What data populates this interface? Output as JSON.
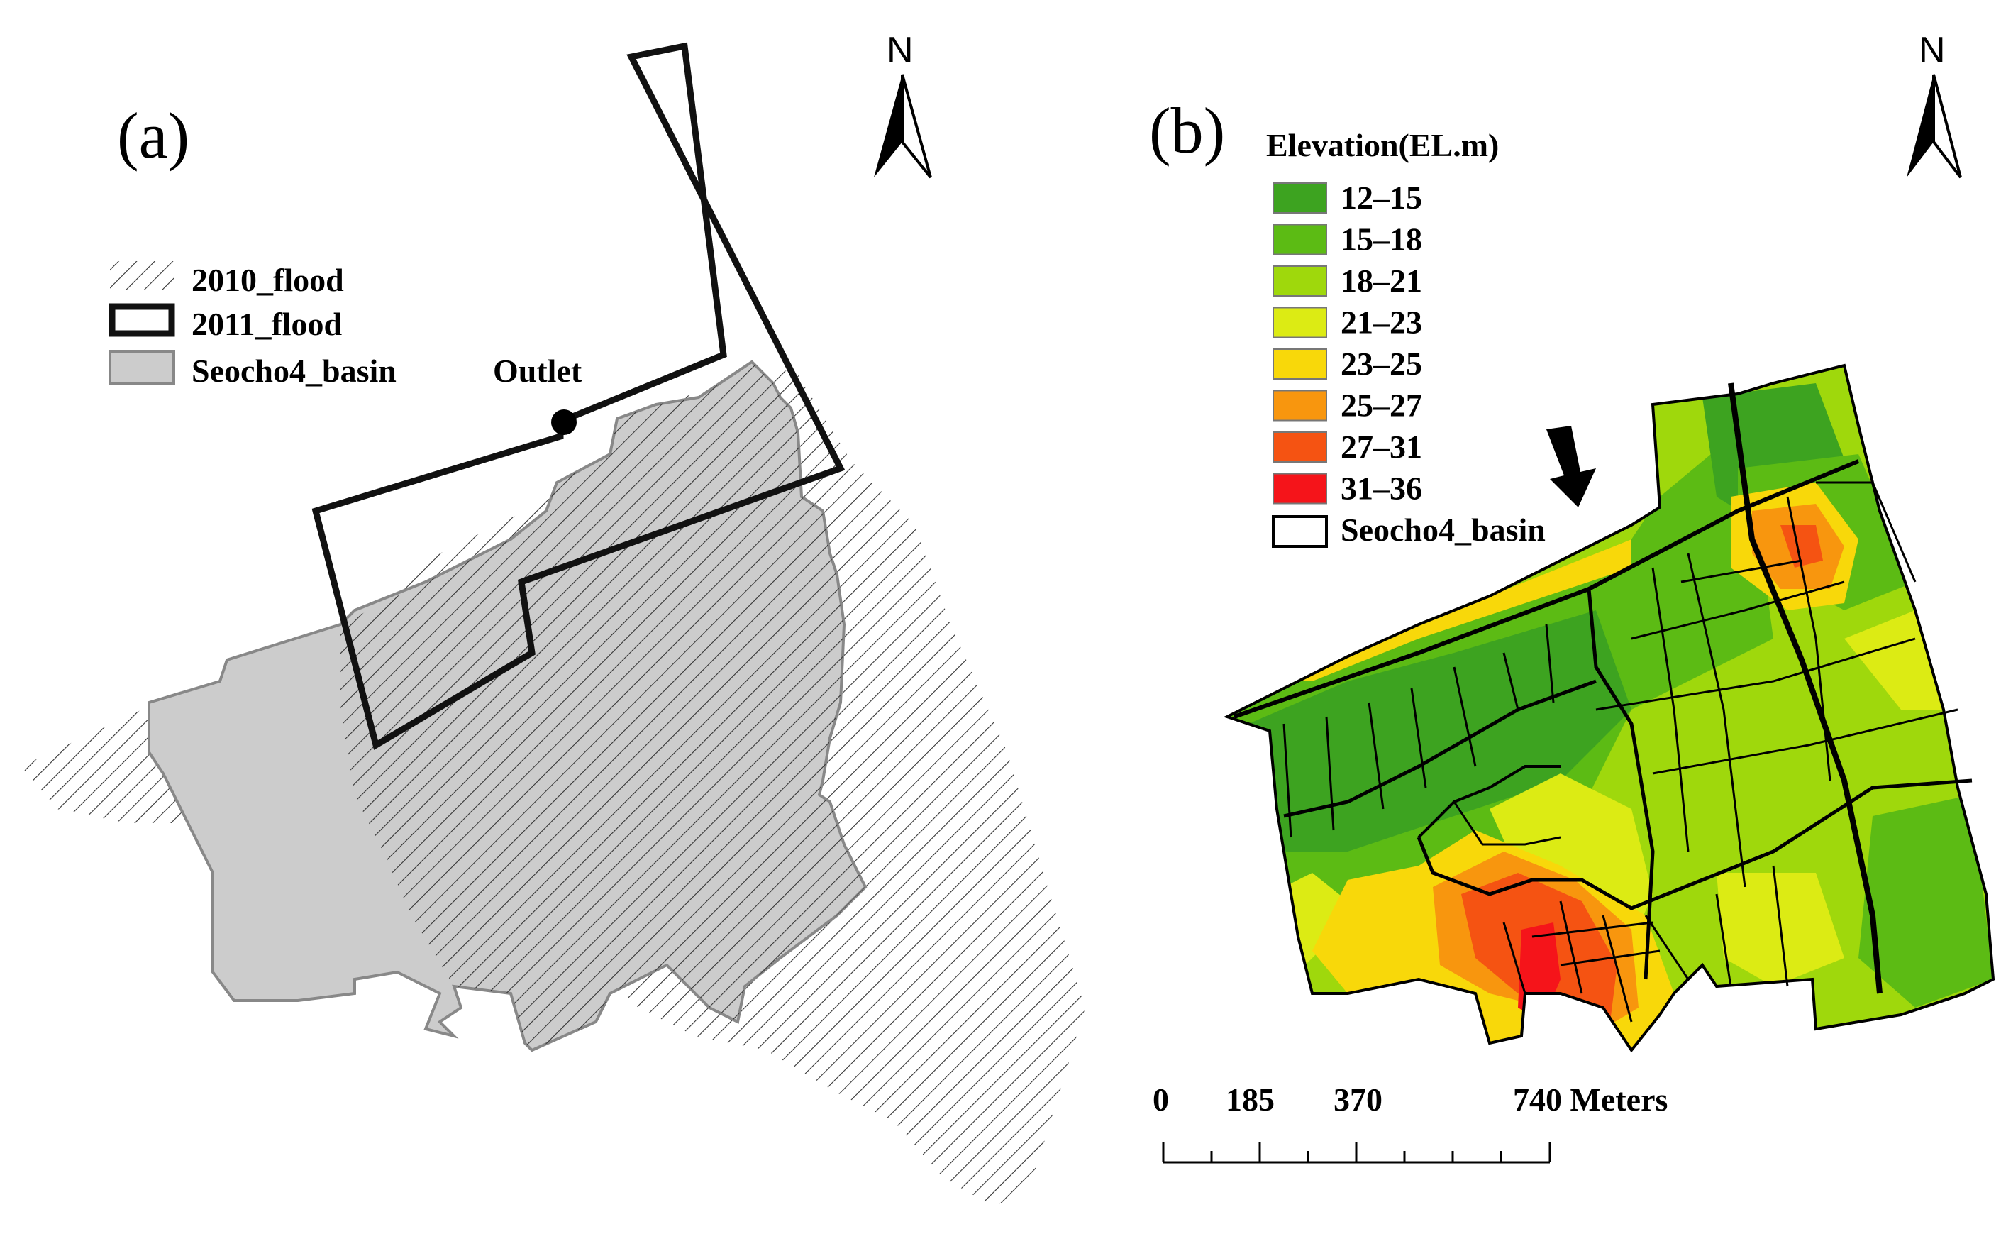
{
  "panel_a": {
    "label": "(a)",
    "north": "N",
    "outlet_label": "Outlet",
    "legend": [
      {
        "key": "flood2010",
        "label": "2010_flood",
        "style": "hatch"
      },
      {
        "key": "flood2011",
        "label": "2011_flood",
        "style": "thick-outline"
      },
      {
        "key": "basin",
        "label": "Seocho4_basin",
        "style": "fill",
        "color": "#cccccc"
      }
    ]
  },
  "panel_b": {
    "label": "(b)",
    "north": "N",
    "legend_title": "Elevation(EL.m)",
    "classes": [
      {
        "label": "12–15",
        "color": "#3da320"
      },
      {
        "label": "15–18",
        "color": "#5cbb14"
      },
      {
        "label": "18–21",
        "color": "#9fd80c"
      },
      {
        "label": "21–23",
        "color": "#dceb14"
      },
      {
        "label": "23–25",
        "color": "#f8d80a"
      },
      {
        "label": "25–27",
        "color": "#f8960e"
      },
      {
        "label": "27–31",
        "color": "#f55312"
      },
      {
        "label": "31–36",
        "color": "#f5141a"
      }
    ],
    "basin_label": "Seocho4_basin",
    "scale": {
      "ticks": [
        "0",
        "185",
        "370",
        "740 Meters"
      ]
    }
  }
}
